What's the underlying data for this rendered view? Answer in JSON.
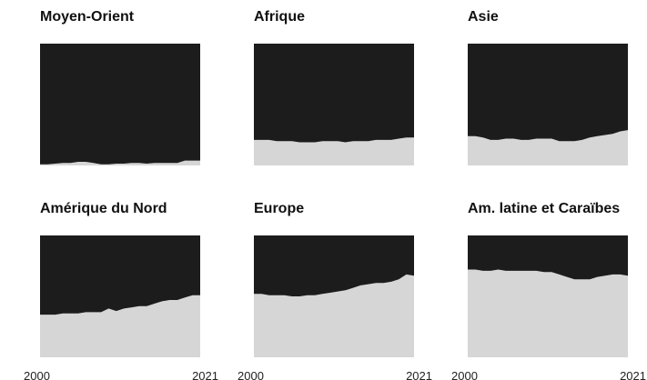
{
  "colors": {
    "dark": "#1c1c1c",
    "light": "#d6d6d6",
    "text": "#111111"
  },
  "chart_data": {
    "type": "area",
    "x_ticks": [
      "2000",
      "2021"
    ],
    "years": [
      2000,
      2001,
      2002,
      2003,
      2004,
      2005,
      2006,
      2007,
      2008,
      2009,
      2010,
      2011,
      2012,
      2013,
      2014,
      2015,
      2016,
      2017,
      2018,
      2019,
      2020,
      2021
    ],
    "ylim": [
      0,
      1
    ],
    "panels": [
      {
        "title": "Moyen-Orient",
        "light_share": [
          0.01,
          0.01,
          0.015,
          0.02,
          0.02,
          0.03,
          0.03,
          0.02,
          0.01,
          0.01,
          0.015,
          0.015,
          0.02,
          0.02,
          0.015,
          0.02,
          0.02,
          0.02,
          0.02,
          0.04,
          0.04,
          0.04
        ]
      },
      {
        "title": "Afrique",
        "light_share": [
          0.21,
          0.21,
          0.21,
          0.2,
          0.2,
          0.2,
          0.19,
          0.19,
          0.19,
          0.2,
          0.2,
          0.2,
          0.19,
          0.2,
          0.2,
          0.2,
          0.21,
          0.21,
          0.21,
          0.22,
          0.23,
          0.23
        ]
      },
      {
        "title": "Asie",
        "light_share": [
          0.24,
          0.24,
          0.23,
          0.21,
          0.21,
          0.22,
          0.22,
          0.21,
          0.21,
          0.22,
          0.22,
          0.22,
          0.2,
          0.2,
          0.2,
          0.21,
          0.23,
          0.24,
          0.25,
          0.26,
          0.28,
          0.29
        ]
      },
      {
        "title": "Amérique du Nord",
        "light_share": [
          0.35,
          0.35,
          0.35,
          0.36,
          0.36,
          0.36,
          0.37,
          0.37,
          0.37,
          0.4,
          0.38,
          0.4,
          0.41,
          0.42,
          0.42,
          0.44,
          0.46,
          0.47,
          0.47,
          0.49,
          0.51,
          0.51
        ]
      },
      {
        "title": "Europe",
        "light_share": [
          0.52,
          0.52,
          0.51,
          0.51,
          0.51,
          0.5,
          0.5,
          0.51,
          0.51,
          0.52,
          0.53,
          0.54,
          0.55,
          0.57,
          0.59,
          0.6,
          0.61,
          0.61,
          0.62,
          0.64,
          0.68,
          0.67
        ]
      },
      {
        "title": "Am. latine et Caraïbes",
        "light_share": [
          0.72,
          0.72,
          0.71,
          0.71,
          0.72,
          0.71,
          0.71,
          0.71,
          0.71,
          0.71,
          0.7,
          0.7,
          0.68,
          0.66,
          0.64,
          0.64,
          0.64,
          0.66,
          0.67,
          0.68,
          0.68,
          0.67
        ]
      }
    ]
  }
}
